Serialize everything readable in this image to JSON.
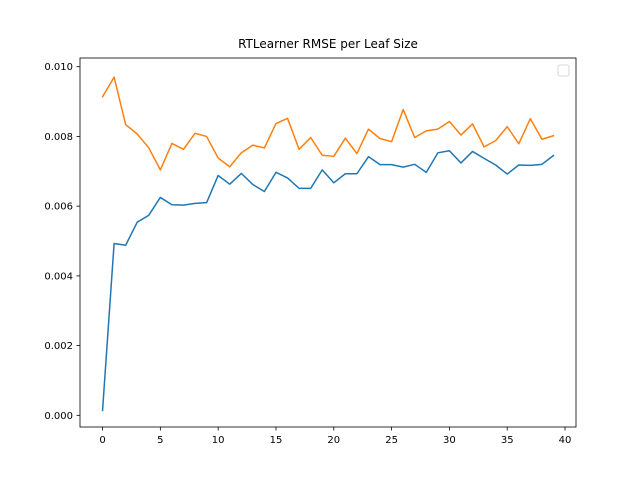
{
  "chart_data": {
    "type": "line",
    "title": "RTLearner RMSE per Leaf Size",
    "xlabel": "",
    "ylabel": "",
    "xlim": [
      -1.95,
      40.95
    ],
    "ylim": [
      -0.000335,
      0.01025
    ],
    "xticks": [
      0,
      5,
      10,
      15,
      20,
      25,
      30,
      35,
      40
    ],
    "xtick_labels": [
      "0",
      "5",
      "10",
      "15",
      "20",
      "25",
      "30",
      "35",
      "40"
    ],
    "yticks": [
      0.0,
      0.002,
      0.004,
      0.006,
      0.008,
      0.01
    ],
    "ytick_labels": [
      "0.000",
      "0.002",
      "0.004",
      "0.006",
      "0.008",
      "0.010"
    ],
    "grid": false,
    "legend": {
      "placement": "upper-right",
      "entries": []
    },
    "x": [
      0,
      1,
      2,
      3,
      4,
      5,
      6,
      7,
      8,
      9,
      10,
      11,
      12,
      13,
      14,
      15,
      16,
      17,
      18,
      19,
      20,
      21,
      22,
      23,
      24,
      25,
      26,
      27,
      28,
      29,
      30,
      31,
      32,
      33,
      34,
      35,
      36,
      37,
      38,
      39
    ],
    "series": [
      {
        "color": "#1f77b4",
        "values": [
          0.00014,
          0.00493,
          0.00488,
          0.00554,
          0.00574,
          0.00625,
          0.00604,
          0.00603,
          0.00608,
          0.0061,
          0.00688,
          0.00663,
          0.00694,
          0.00662,
          0.00642,
          0.00697,
          0.00681,
          0.00651,
          0.00651,
          0.00704,
          0.00667,
          0.00693,
          0.00693,
          0.00742,
          0.00719,
          0.00719,
          0.00712,
          0.0072,
          0.00697,
          0.00753,
          0.00759,
          0.00724,
          0.00757,
          0.00737,
          0.00718,
          0.00692,
          0.00718,
          0.00717,
          0.0072,
          0.00745
        ]
      },
      {
        "color": "#ff7f0e",
        "values": [
          0.00914,
          0.0097,
          0.00834,
          0.00807,
          0.00767,
          0.00704,
          0.0078,
          0.00763,
          0.00809,
          0.008,
          0.00738,
          0.00713,
          0.00753,
          0.00775,
          0.00767,
          0.00837,
          0.00852,
          0.00763,
          0.00797,
          0.00746,
          0.00743,
          0.00795,
          0.00751,
          0.00821,
          0.00794,
          0.00785,
          0.00877,
          0.00797,
          0.00816,
          0.00821,
          0.00843,
          0.00804,
          0.00836,
          0.0077,
          0.00788,
          0.00828,
          0.00779,
          0.00851,
          0.00792,
          0.00802
        ]
      }
    ]
  }
}
